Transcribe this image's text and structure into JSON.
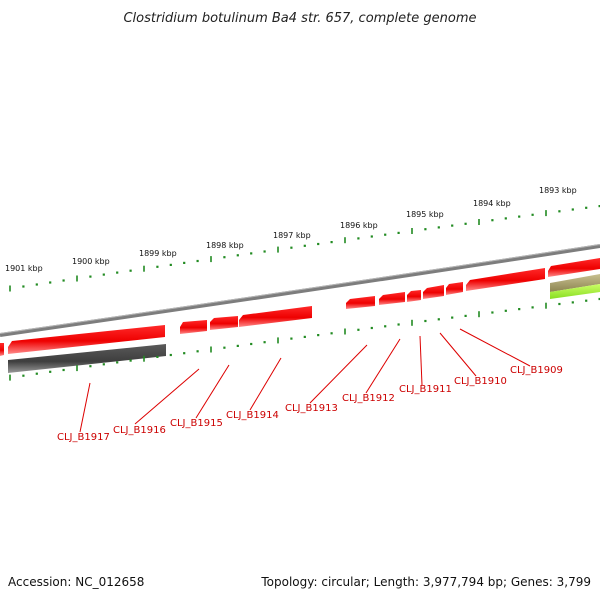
{
  "title": "Clostridium botulinum Ba4 str. 657, complete genome",
  "footer": {
    "accession": "Accession: NC_012658",
    "summary": "Topology: circular; Length: 3,977,794 bp; Genes: 3,799"
  },
  "scale_ticks": [
    "1901 kbp",
    "1900 kbp",
    "1899 kbp",
    "1898 kbp",
    "1897 kbp",
    "1896 kbp",
    "1895 kbp",
    "1894 kbp",
    "1893 kbp"
  ],
  "gene_labels": [
    "CLJ_B1917",
    "CLJ_B1916",
    "CLJ_B1915",
    "CLJ_B1914",
    "CLJ_B1913",
    "CLJ_B1912",
    "CLJ_B1911",
    "CLJ_B1910",
    "CLJ_B1909"
  ],
  "colors": {
    "backbone": "#8a8a8a",
    "cds_forward": "#ee0000",
    "cds_reverse_gray": "#555555",
    "rna": "#99ee22",
    "rna_olive": "#aaa060",
    "ticks": "#228b22",
    "label_lines": "#dd0000"
  }
}
